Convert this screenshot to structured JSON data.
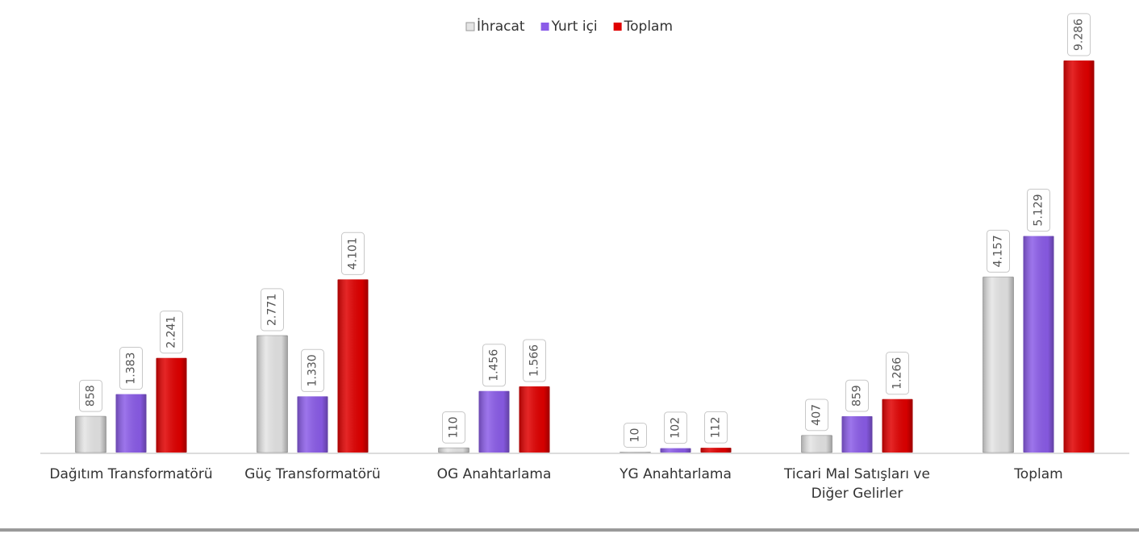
{
  "chart_data": {
    "type": "bar",
    "categories": [
      "Dağıtım Transformatörü",
      "Güç Transformatörü",
      "OG Anahtarlama",
      "YG Anahtarlama",
      "Ticari Mal Satışları ve Diğer Gelirler",
      "Toplam"
    ],
    "series": [
      {
        "name": "İhracat",
        "color": "#e4e4e4",
        "values": [
          858,
          2771,
          110,
          10,
          407,
          4157
        ],
        "value_labels": [
          "858",
          "2.771",
          "110",
          "10",
          "407",
          "4.157"
        ]
      },
      {
        "name": "Yurt içi",
        "color": "#8b5ce8",
        "values": [
          1383,
          1330,
          1456,
          102,
          859,
          5129
        ],
        "value_labels": [
          "1.383",
          "1.330",
          "1.456",
          "102",
          "859",
          "5.129"
        ]
      },
      {
        "name": "Toplam",
        "color": "#e00000",
        "values": [
          2241,
          4101,
          1566,
          112,
          1266,
          9286
        ],
        "value_labels": [
          "2.241",
          "4.101",
          "1.566",
          "112",
          "1.266",
          "9.286"
        ]
      }
    ],
    "legend": "top"
  }
}
